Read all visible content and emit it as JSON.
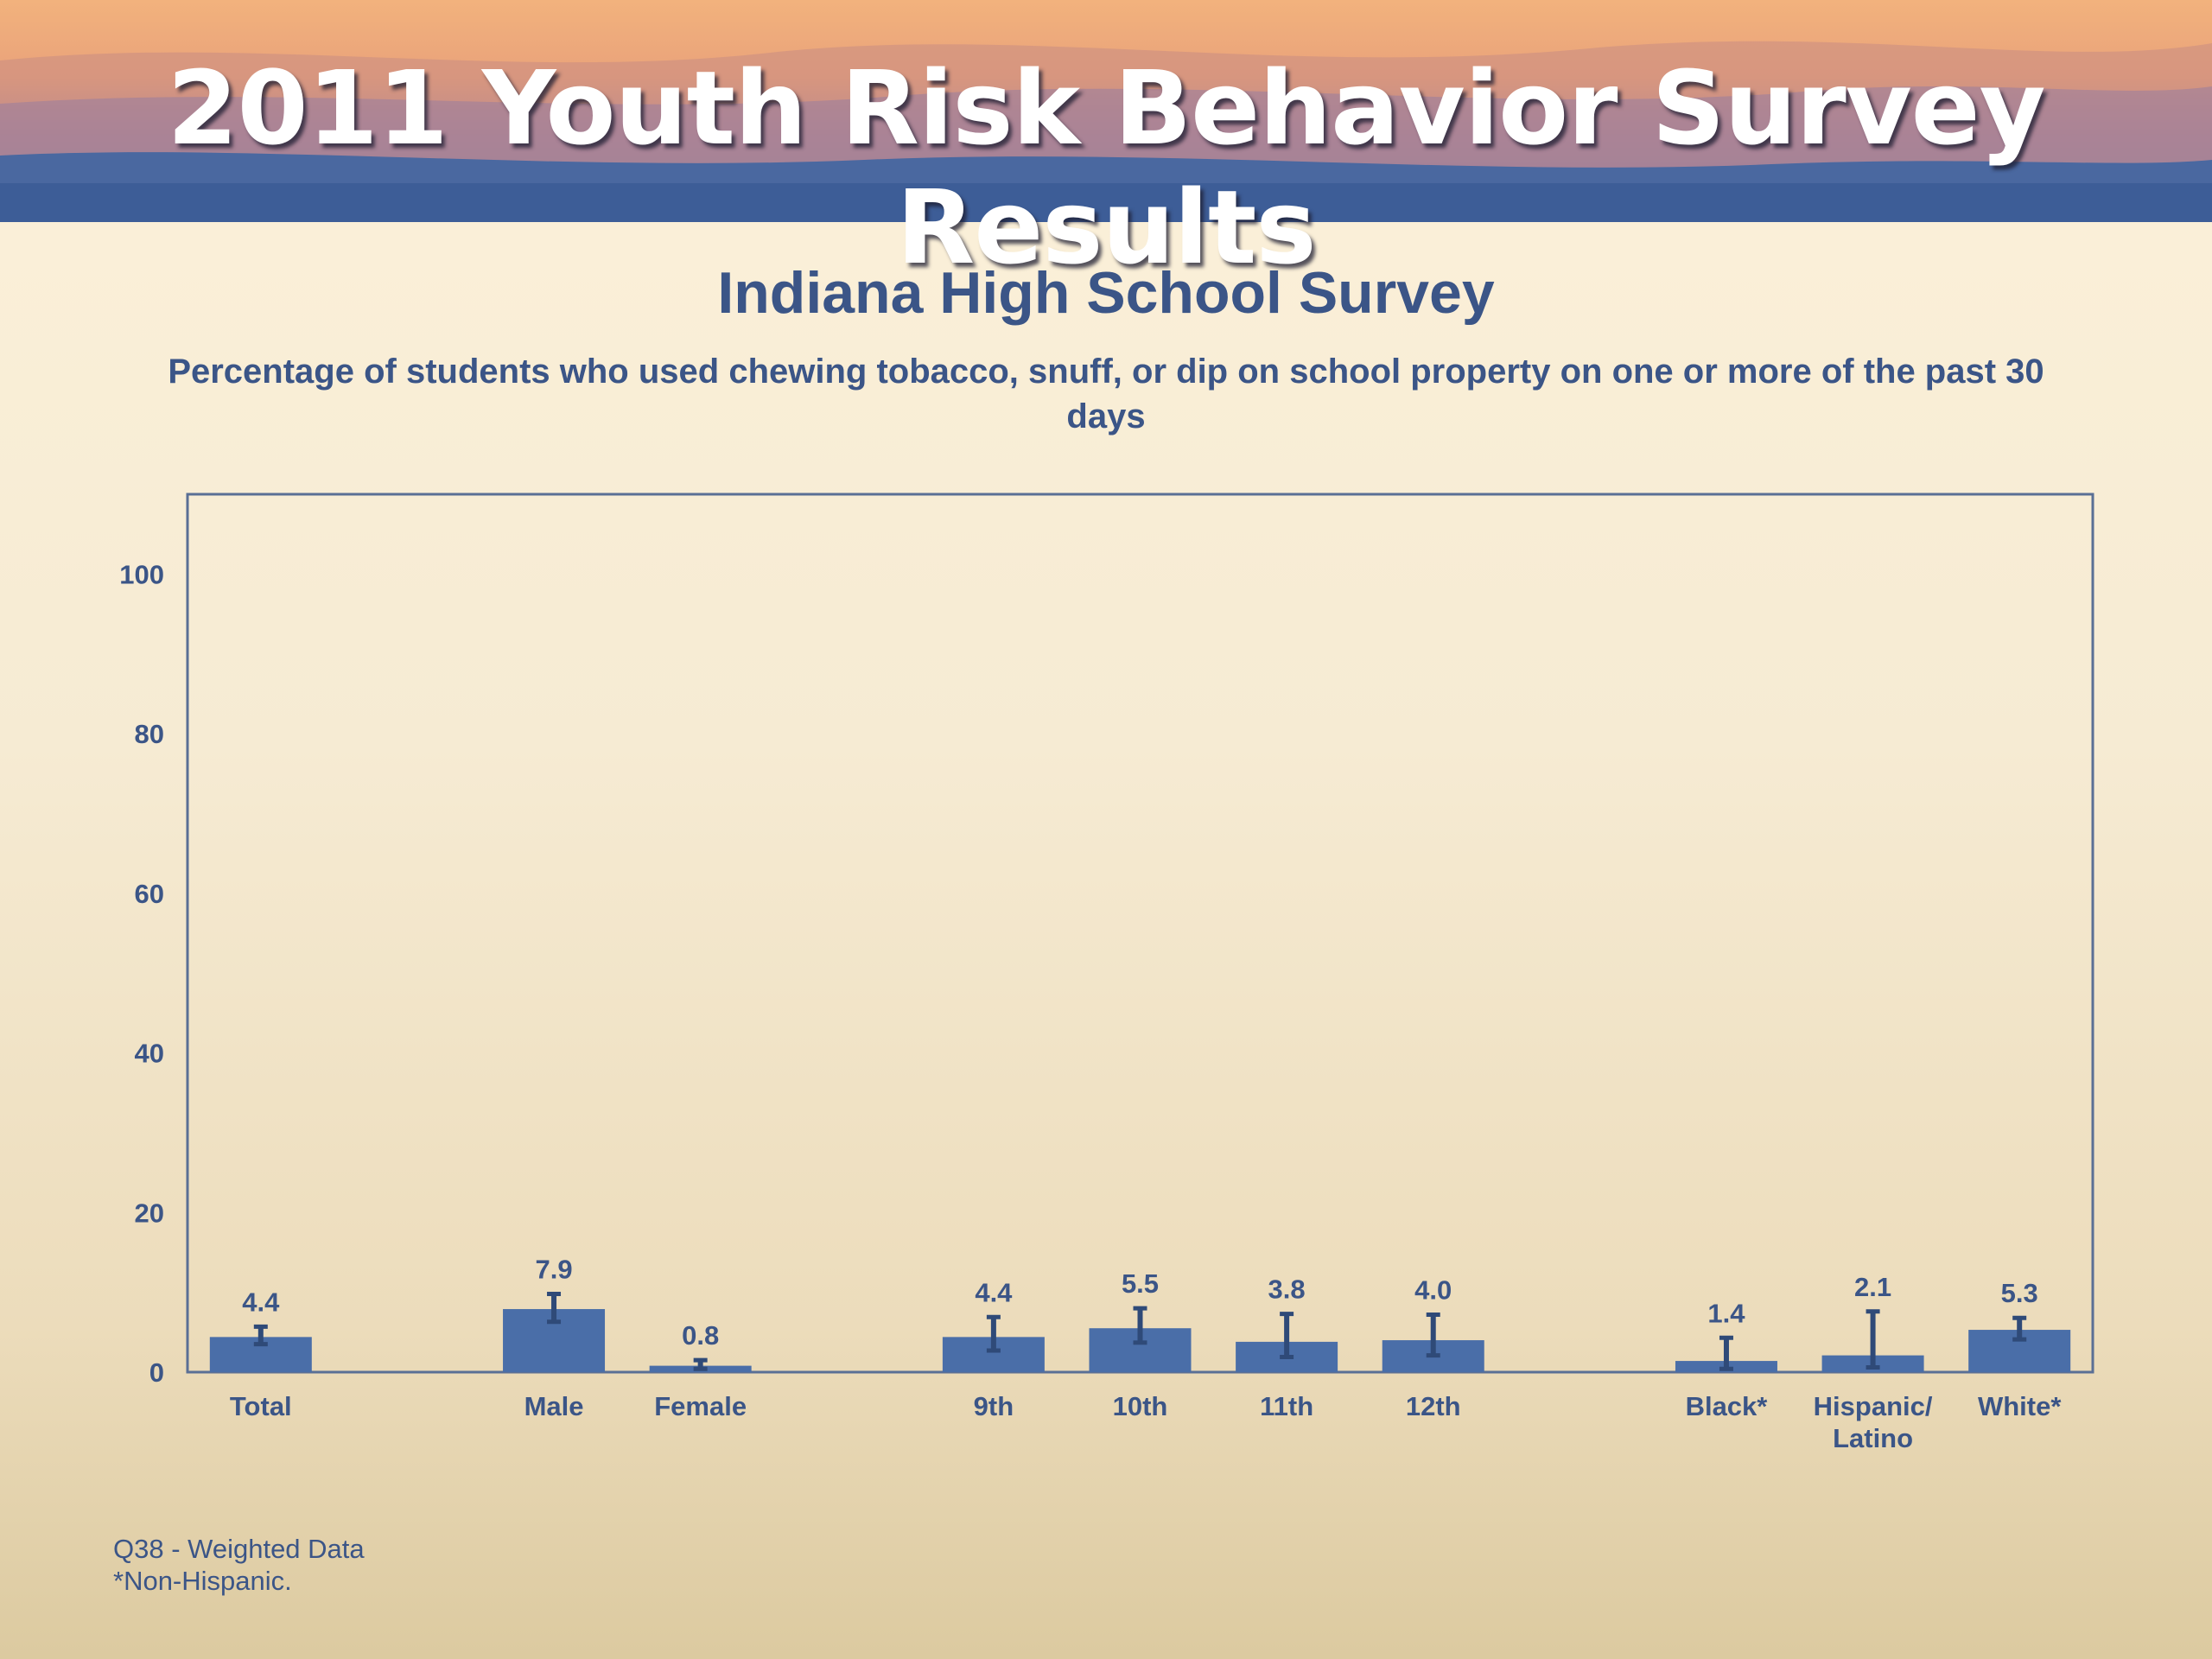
{
  "banner": {
    "title": "2011 Youth Risk Behavior Survey Results"
  },
  "chart_data": {
    "type": "bar",
    "title": "Indiana High School Survey",
    "subtitle": "Percentage of students who used chewing tobacco, snuff, or dip on school property on one or more of the past 30 days",
    "xlabel": "",
    "ylabel": "",
    "ylim": [
      0,
      110
    ],
    "yticks": [
      "0",
      "20",
      "40",
      "60",
      "80",
      "100"
    ],
    "grid": false,
    "legend": "none",
    "bar_color": "#4a6ea8",
    "categories": [
      {
        "label": [
          "Total"
        ],
        "value": 4.4,
        "value_label": "4.4",
        "error": [
          3.5,
          5.7
        ],
        "group": 0
      },
      {
        "label": [
          "Male"
        ],
        "value": 7.9,
        "value_label": "7.9",
        "error": [
          6.3,
          9.8
        ],
        "group": 1
      },
      {
        "label": [
          "Female"
        ],
        "value": 0.8,
        "value_label": "0.8",
        "error": [
          0.4,
          1.5
        ],
        "group": 1
      },
      {
        "label": [
          "9th"
        ],
        "value": 4.4,
        "value_label": "4.4",
        "error": [
          2.7,
          6.9
        ],
        "group": 2
      },
      {
        "label": [
          "10th"
        ],
        "value": 5.5,
        "value_label": "5.5",
        "error": [
          3.7,
          8.0
        ],
        "group": 2
      },
      {
        "label": [
          "11th"
        ],
        "value": 3.8,
        "value_label": "3.8",
        "error": [
          1.9,
          7.3
        ],
        "group": 2
      },
      {
        "label": [
          "12th"
        ],
        "value": 4.0,
        "value_label": "4.0",
        "error": [
          2.1,
          7.2
        ],
        "group": 2
      },
      {
        "label": [
          "Black*"
        ],
        "value": 1.4,
        "value_label": "1.4",
        "error": [
          0.4,
          4.3
        ],
        "group": 3
      },
      {
        "label": [
          "Hispanic/",
          "Latino"
        ],
        "value": 2.1,
        "value_label": "2.1",
        "error": [
          0.6,
          7.6
        ],
        "group": 3
      },
      {
        "label": [
          "White*"
        ],
        "value": 5.3,
        "value_label": "5.3",
        "error": [
          4.1,
          6.8
        ],
        "group": 3
      }
    ]
  },
  "footnotes": {
    "line1": "Q38 - Weighted Data",
    "line2": "*Non-Hispanic."
  }
}
